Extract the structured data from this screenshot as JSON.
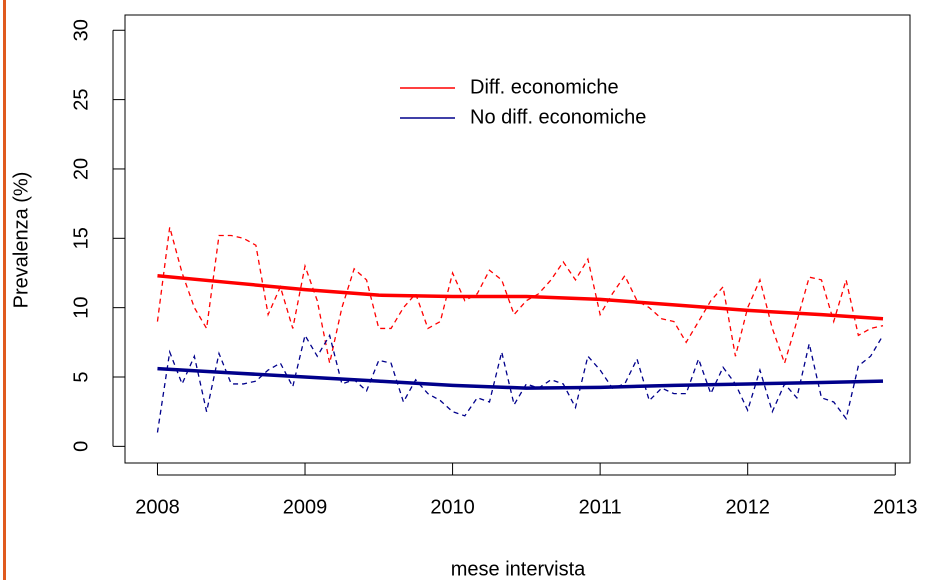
{
  "chart_data": {
    "type": "line",
    "x_label": "mese intervista",
    "y_label": "Prevalenza (%)",
    "xlim": [
      2007.78,
      2013.1
    ],
    "xticks": [
      2008,
      2009,
      2010,
      2011,
      2012,
      2013
    ],
    "ylim": [
      -1.2,
      31.1
    ],
    "yticks": [
      0,
      5,
      10,
      15,
      20,
      25,
      30
    ],
    "x": [
      2008,
      2008.083,
      2008.167,
      2008.25,
      2008.333,
      2008.417,
      2008.5,
      2008.583,
      2008.667,
      2008.75,
      2008.833,
      2008.917,
      2009,
      2009.083,
      2009.167,
      2009.25,
      2009.333,
      2009.417,
      2009.5,
      2009.583,
      2009.667,
      2009.75,
      2009.833,
      2009.917,
      2010,
      2010.083,
      2010.167,
      2010.25,
      2010.333,
      2010.417,
      2010.5,
      2010.583,
      2010.667,
      2010.75,
      2010.833,
      2010.917,
      2011,
      2011.083,
      2011.167,
      2011.25,
      2011.333,
      2011.417,
      2011.5,
      2011.583,
      2011.667,
      2011.75,
      2011.833,
      2011.917,
      2012,
      2012.083,
      2012.167,
      2012.25,
      2012.333,
      2012.417,
      2012.5,
      2012.583,
      2012.667,
      2012.75,
      2012.833,
      2012.917
    ],
    "series": [
      {
        "name": "Diff. economiche",
        "color": "#ff0000",
        "values": [
          9,
          15.8,
          12.5,
          10,
          8.5,
          15.2,
          15.2,
          15,
          14.5,
          9.5,
          11.5,
          8.5,
          13,
          10.5,
          6,
          10,
          12.8,
          12,
          8.5,
          8.5,
          10,
          11,
          8.5,
          9,
          12.5,
          10.5,
          11,
          12.7,
          12,
          9.5,
          10.5,
          11,
          12,
          13.3,
          12,
          13.5,
          9.5,
          11,
          12.3,
          10.5,
          10,
          9.2,
          9,
          7.5,
          9,
          10.5,
          11.5,
          6.5,
          10,
          12,
          8.5,
          6,
          9,
          12.2,
          12,
          9,
          12,
          8,
          8.5,
          8.7
        ],
        "trend": {
          "x": [
            2008,
            2008.5,
            2009,
            2009.5,
            2010,
            2010.5,
            2011,
            2011.5,
            2012,
            2012.5,
            2012.917
          ],
          "values": [
            12.3,
            11.8,
            11.3,
            10.9,
            10.8,
            10.8,
            10.6,
            10.2,
            9.8,
            9.5,
            9.2
          ]
        }
      },
      {
        "name": "No diff. economiche",
        "color": "#00008b",
        "values": [
          1,
          6.8,
          4.5,
          6.5,
          2.5,
          6.7,
          4.5,
          4.5,
          4.7,
          5.5,
          6,
          4.3,
          8,
          6.5,
          8,
          4.5,
          4.8,
          4,
          6.2,
          6,
          3.2,
          4.8,
          3.8,
          3.3,
          2.5,
          2.2,
          3.5,
          3.2,
          6.8,
          3,
          4.5,
          4.2,
          4.8,
          4.5,
          2.8,
          6.5,
          5.5,
          4.2,
          4.5,
          6.3,
          3.3,
          4.2,
          3.8,
          3.8,
          6.3,
          3.8,
          5.7,
          4.5,
          2.6,
          5.5,
          2.5,
          4.5,
          3.5,
          7.4,
          3.5,
          3.2,
          2,
          5.8,
          6.5,
          8
        ],
        "trend": {
          "x": [
            2008,
            2008.5,
            2009,
            2009.5,
            2010,
            2010.5,
            2011,
            2011.5,
            2012,
            2012.5,
            2012.917
          ],
          "values": [
            5.6,
            5.3,
            5.0,
            4.7,
            4.4,
            4.2,
            4.25,
            4.4,
            4.5,
            4.6,
            4.7
          ]
        }
      }
    ]
  }
}
